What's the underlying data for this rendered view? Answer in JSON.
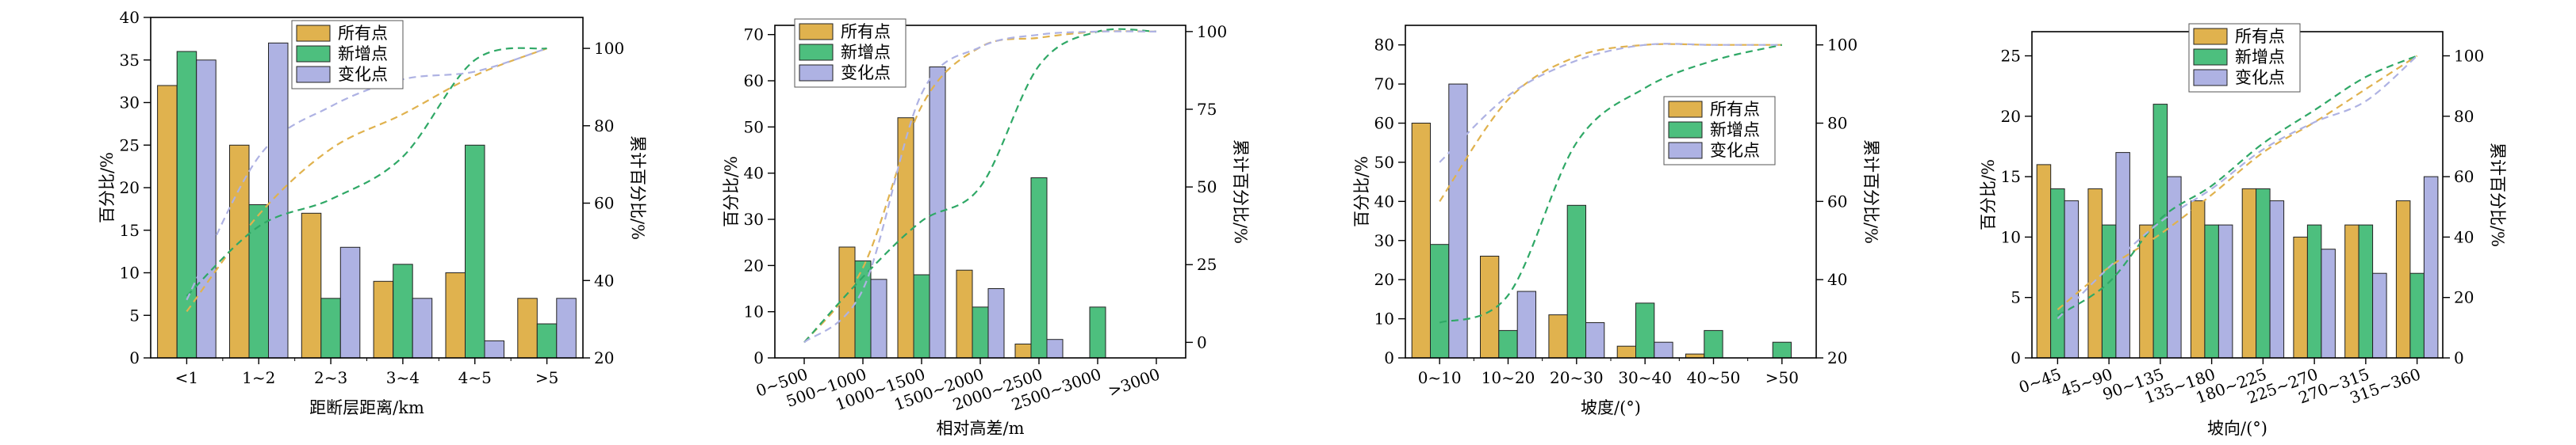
{
  "legend_labels": [
    "所有点",
    "新增点",
    "变化点"
  ],
  "colors": {
    "所有点": "#E0B24E",
    "新增点": "#4DBF7E",
    "变化点": "#AEB2E3",
    "bar_stroke": "#222222"
  },
  "chart_data": [
    {
      "type": "bar",
      "categories": [
        "<1",
        "1~2",
        "2~3",
        "3~4",
        "4~5",
        ">5"
      ],
      "series": [
        {
          "name": "所有点",
          "values": [
            32,
            25,
            17,
            9,
            10,
            7
          ]
        },
        {
          "name": "新增点",
          "values": [
            36,
            18,
            7,
            11,
            25,
            4
          ]
        },
        {
          "name": "变化点",
          "values": [
            35,
            37,
            13,
            7,
            2,
            7
          ]
        }
      ],
      "cumulative": [
        {
          "name": "所有点",
          "values": [
            32,
            57,
            74,
            83,
            93,
            100
          ]
        },
        {
          "name": "新增点",
          "values": [
            36,
            54,
            61,
            72,
            97,
            100
          ]
        },
        {
          "name": "变化点",
          "values": [
            35,
            72,
            85,
            92,
            94,
            100
          ]
        }
      ],
      "xlabel": "距断层距离/km",
      "ylabel": "百分比/%",
      "y2label": "累计百分比/%",
      "ylim": [
        0,
        40
      ],
      "yticks": [
        0,
        5,
        10,
        15,
        20,
        25,
        30,
        35,
        40
      ],
      "y2lim": [
        20,
        108
      ],
      "y2ticks": [
        20,
        40,
        60,
        80,
        100
      ],
      "legend_position": "top-center",
      "rotate_xticks": false,
      "grid": false
    },
    {
      "type": "bar",
      "categories": [
        "0~500",
        "500~1000",
        "1000~1500",
        "1500~2000",
        "2000~2500",
        "2500~3000",
        ">3000"
      ],
      "series": [
        {
          "name": "所有点",
          "values": [
            0,
            24,
            52,
            19,
            3,
            0,
            0
          ]
        },
        {
          "name": "新增点",
          "values": [
            0,
            21,
            18,
            11,
            39,
            11,
            0
          ]
        },
        {
          "name": "变化点",
          "values": [
            0,
            17,
            63,
            15,
            4,
            0,
            0
          ]
        }
      ],
      "cumulative": [
        {
          "name": "所有点",
          "values": [
            0,
            24,
            76,
            95,
            98,
            100,
            100
          ]
        },
        {
          "name": "新增点",
          "values": [
            0,
            21,
            39,
            50,
            89,
            100,
            100
          ]
        },
        {
          "name": "变化点",
          "values": [
            0,
            17,
            80,
            95,
            99,
            100,
            100
          ]
        }
      ],
      "xlabel": "相对高差/m",
      "ylabel": "百分比/%",
      "y2label": "累计百分比/%",
      "ylim": [
        0,
        72
      ],
      "yticks": [
        0,
        10,
        20,
        30,
        40,
        50,
        60,
        70
      ],
      "y2lim": [
        -5,
        102
      ],
      "y2ticks": [
        0,
        25,
        50,
        75,
        100
      ],
      "legend_position": "top-left",
      "rotate_xticks": true,
      "grid": false
    },
    {
      "type": "bar",
      "categories": [
        "0~10",
        "10~20",
        "20~30",
        "30~40",
        "40~50",
        ">50"
      ],
      "series": [
        {
          "name": "所有点",
          "values": [
            60,
            26,
            11,
            3,
            1,
            0
          ]
        },
        {
          "name": "新增点",
          "values": [
            29,
            7,
            39,
            14,
            7,
            4
          ]
        },
        {
          "name": "变化点",
          "values": [
            70,
            17,
            9,
            4,
            0,
            0
          ]
        }
      ],
      "cumulative": [
        {
          "name": "所有点",
          "values": [
            60,
            86,
            97,
            100,
            100,
            100
          ]
        },
        {
          "name": "新增点",
          "values": [
            29,
            36,
            75,
            89,
            96,
            100
          ]
        },
        {
          "name": "变化点",
          "values": [
            70,
            87,
            96,
            100,
            100,
            100
          ]
        }
      ],
      "xlabel": "坡度/(°)",
      "ylabel": "百分比/%",
      "y2label": "累计百分比/%",
      "ylim": [
        0,
        85
      ],
      "yticks": [
        0,
        10,
        20,
        30,
        40,
        50,
        60,
        70,
        80
      ],
      "y2lim": [
        20,
        105
      ],
      "y2ticks": [
        20,
        40,
        60,
        80,
        100
      ],
      "legend_position": "center-right",
      "rotate_xticks": false,
      "grid": false
    },
    {
      "type": "bar",
      "categories": [
        "0~45",
        "45~90",
        "90~135",
        "135~180",
        "180~225",
        "225~270",
        "270~315",
        "315~360"
      ],
      "series": [
        {
          "name": "所有点",
          "values": [
            16,
            14,
            11,
            13,
            14,
            10,
            11,
            13
          ]
        },
        {
          "name": "新增点",
          "values": [
            14,
            11,
            21,
            11,
            14,
            11,
            11,
            7
          ]
        },
        {
          "name": "变化点",
          "values": [
            13,
            17,
            15,
            11,
            13,
            9,
            7,
            15
          ]
        }
      ],
      "cumulative": [
        {
          "name": "所有点",
          "values": [
            16,
            30,
            41,
            54,
            68,
            78,
            89,
            100
          ]
        },
        {
          "name": "新增点",
          "values": [
            14,
            25,
            46,
            57,
            71,
            82,
            93,
            100
          ]
        },
        {
          "name": "变化点",
          "values": [
            13,
            30,
            45,
            56,
            69,
            78,
            85,
            100
          ]
        }
      ],
      "xlabel": "坡向/(°)",
      "ylabel": "百分比/%",
      "y2label": "累计百分比/%",
      "ylim": [
        0,
        27
      ],
      "yticks": [
        0,
        5,
        10,
        15,
        20,
        25
      ],
      "y2lim": [
        0,
        108
      ],
      "y2ticks": [
        0,
        20,
        40,
        60,
        80,
        100
      ],
      "legend_position": "top-center",
      "rotate_xticks": true,
      "grid": false
    }
  ]
}
